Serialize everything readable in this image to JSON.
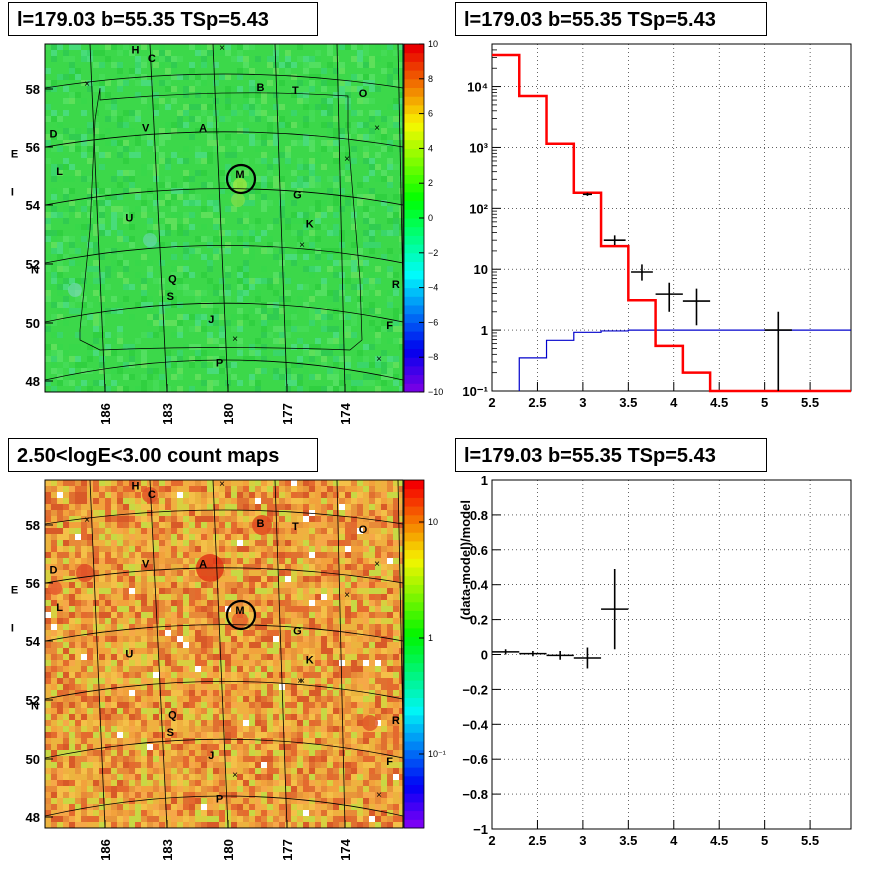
{
  "titles": {
    "map_top": "l=179.03 b=55.35 TSp=5.43",
    "spectrum": "l=179.03 b=55.35 TSp=5.43",
    "map_bottom": "2.50<logE<3.00 count maps",
    "residual": "l=179.03 b=55.35 TSp=5.43"
  },
  "colors": {
    "model_step": "#ff0000",
    "background_step": "#0000cc",
    "data_points": "#000000",
    "source_circle": "#000000",
    "map_top_bg": "#3cd84a",
    "map_bottom_bg": "#f0a040"
  },
  "chart_data": [
    {
      "type": "heatmap",
      "title": "l=179.03 b=55.35 TSp=5.43",
      "description_colorbar": "linear",
      "x_ticks": [
        "186",
        "183",
        "180",
        "177",
        "174"
      ],
      "y_ticks": [
        "48",
        "50",
        "52",
        "54",
        "56",
        "58"
      ],
      "colorbar_ticks": [
        "10",
        "8",
        "6",
        "4",
        "2",
        "0",
        "−2",
        "−4",
        "−6",
        "−8",
        "−10"
      ],
      "sources": [
        {
          "label": "H",
          "lon": 184.1,
          "lat": 59.2
        },
        {
          "label": "C",
          "lon": 183.3,
          "lat": 58.9
        },
        {
          "label": "B",
          "lon": 178.0,
          "lat": 57.9
        },
        {
          "label": "T",
          "lon": 176.3,
          "lat": 57.8
        },
        {
          "label": "O",
          "lon": 173.0,
          "lat": 57.7
        },
        {
          "label": "D",
          "lon": 188.1,
          "lat": 56.3
        },
        {
          "label": "V",
          "lon": 183.6,
          "lat": 56.5
        },
        {
          "label": "A",
          "lon": 180.8,
          "lat": 56.5
        },
        {
          "label": "E",
          "lon": 190.0,
          "lat": 55.6
        },
        {
          "label": "L",
          "lon": 187.8,
          "lat": 55.0
        },
        {
          "label": "M",
          "lon": 179.0,
          "lat": 54.9
        },
        {
          "label": "G",
          "lon": 176.2,
          "lat": 54.2
        },
        {
          "label": "I",
          "lon": 190.1,
          "lat": 54.3
        },
        {
          "label": "U",
          "lon": 184.4,
          "lat": 53.4
        },
        {
          "label": "K",
          "lon": 175.6,
          "lat": 53.2
        },
        {
          "label": "N",
          "lon": 189.0,
          "lat": 51.6
        },
        {
          "label": "Q",
          "lon": 182.3,
          "lat": 51.3
        },
        {
          "label": "R",
          "lon": 171.4,
          "lat": 51.1
        },
        {
          "label": "S",
          "lon": 182.4,
          "lat": 50.7
        },
        {
          "label": "J",
          "lon": 180.4,
          "lat": 49.9
        },
        {
          "label": "F",
          "lon": 171.7,
          "lat": 49.7
        },
        {
          "label": "P",
          "lon": 180.0,
          "lat": 48.4
        }
      ]
    },
    {
      "type": "line",
      "title": "l=179.03 b=55.35 TSp=5.43",
      "y_scale": "log",
      "xlim": [
        2,
        5.95
      ],
      "ylim": [
        0.1,
        50000
      ],
      "x_ticks": [
        "2",
        "2.5",
        "3",
        "3.5",
        "4",
        "4.5",
        "5",
        "5.5"
      ],
      "y_ticks": [
        "10⁻¹",
        "1",
        "10",
        "10²",
        "10³",
        "10⁴"
      ],
      "series": [
        {
          "kind": "model_step",
          "edges": [
            2.0,
            2.3,
            2.6,
            2.9,
            3.2,
            3.5,
            3.8,
            4.1,
            4.4,
            5.95
          ],
          "values": [
            33000,
            7000,
            1150,
            180,
            24,
            3.1,
            0.55,
            0.2,
            0.1
          ]
        },
        {
          "kind": "background_step",
          "edges": [
            2.3,
            2.6,
            2.9,
            3.2,
            3.5,
            3.8,
            5.95
          ],
          "values": [
            0.35,
            0.68,
            0.92,
            0.97,
            1.0,
            1.0
          ]
        },
        {
          "kind": "data_points",
          "points": [
            {
              "x": 3.05,
              "y": 170,
              "xerr": 0.05,
              "ylo": 160,
              "yhi": 180
            },
            {
              "x": 3.35,
              "y": 30,
              "xerr": 0.12,
              "ylo": 25,
              "yhi": 36
            },
            {
              "x": 3.65,
              "y": 9,
              "xerr": 0.12,
              "ylo": 6.5,
              "yhi": 12
            },
            {
              "x": 3.95,
              "y": 3.9,
              "xerr": 0.15,
              "ylo": 2.0,
              "yhi": 6.0
            },
            {
              "x": 4.25,
              "y": 3.0,
              "xerr": 0.15,
              "ylo": 1.2,
              "yhi": 4.8
            },
            {
              "x": 5.15,
              "y": 1.0,
              "xerr": 0.15,
              "ylo": 0.1,
              "yhi": 2.0
            }
          ]
        }
      ]
    },
    {
      "type": "heatmap",
      "title": "2.50<logE<3.00 count maps",
      "description_colorbar": "log",
      "x_ticks": [
        "186",
        "183",
        "180",
        "177",
        "174"
      ],
      "y_ticks": [
        "48",
        "50",
        "52",
        "54",
        "56",
        "58"
      ],
      "colorbar_ticks": [
        "10",
        "1",
        "10⁻¹"
      ]
    },
    {
      "type": "scatter",
      "title": "l=179.03 b=55.35 TSp=5.43",
      "xlim": [
        2,
        5.95
      ],
      "ylim": [
        -1,
        1
      ],
      "ylabel": "(data-model)/model",
      "x_ticks": [
        "2",
        "2.5",
        "3",
        "3.5",
        "4",
        "4.5",
        "5",
        "5.5"
      ],
      "y_ticks": [
        "−1",
        "−0.8",
        "−0.6",
        "−0.4",
        "−0.2",
        "0",
        "0.2",
        "0.4",
        "0.6",
        "0.8",
        "1"
      ],
      "points": [
        {
          "x": 2.15,
          "y": 0.015,
          "xerr": 0.15,
          "ylo": 0.0,
          "yhi": 0.03
        },
        {
          "x": 2.45,
          "y": 0.005,
          "xerr": 0.15,
          "ylo": -0.01,
          "yhi": 0.02
        },
        {
          "x": 2.75,
          "y": -0.005,
          "xerr": 0.15,
          "ylo": -0.03,
          "yhi": 0.02
        },
        {
          "x": 3.05,
          "y": -0.02,
          "xerr": 0.15,
          "ylo": -0.08,
          "yhi": 0.04
        },
        {
          "x": 3.35,
          "y": 0.26,
          "xerr": 0.15,
          "ylo": 0.03,
          "yhi": 0.49
        }
      ]
    }
  ]
}
